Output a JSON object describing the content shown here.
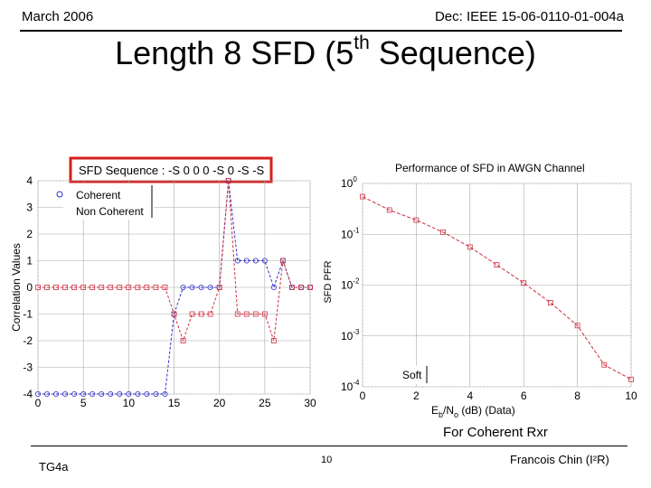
{
  "header": {
    "left": "March 2006",
    "right": "Dec: IEEE 15-06-0110-01-004a"
  },
  "slide": {
    "title_main": "Length 8 SFD (5",
    "title_sup": "th",
    "title_end": " Sequence)",
    "caption": "For Coherent Rxr"
  },
  "footer": {
    "left": "TG4a",
    "page": "10",
    "right": "Francois Chin (I²R)"
  },
  "colors": {
    "coherent": "#3030c8",
    "noncoherent": "#d03040",
    "highlight_box": "#d61f1f"
  },
  "chart_data": [
    {
      "type": "line",
      "title": "SFD Sequence : -S 0 0 0 -S 0 -S -S",
      "ylabel": "Correlation Values",
      "xlabel": "",
      "xlim": [
        0,
        30
      ],
      "ylim": [
        -4,
        4
      ],
      "xticks": [
        0,
        5,
        10,
        15,
        20,
        25,
        30
      ],
      "yticks": [
        -4,
        -3,
        -2,
        -1,
        0,
        1,
        2,
        3,
        4
      ],
      "grid": true,
      "legend_position": "top-left",
      "series": [
        {
          "name": "Coherent",
          "marker": "circle",
          "x": [
            0,
            1,
            2,
            3,
            4,
            5,
            6,
            7,
            8,
            9,
            10,
            11,
            12,
            13,
            14,
            15,
            16,
            17,
            18,
            19,
            20,
            21,
            22,
            23,
            24,
            25,
            26,
            27,
            28,
            29,
            30
          ],
          "y": [
            -4,
            -4,
            -4,
            -4,
            -4,
            -4,
            -4,
            -4,
            -4,
            -4,
            -4,
            -4,
            -4,
            -4,
            -4,
            -1,
            0,
            0,
            0,
            0,
            0,
            4,
            1,
            1,
            1,
            1,
            0,
            1,
            0,
            0,
            0
          ]
        },
        {
          "name": "Non Coherent",
          "marker": "square",
          "x": [
            0,
            1,
            2,
            3,
            4,
            5,
            6,
            7,
            8,
            9,
            10,
            11,
            12,
            13,
            14,
            15,
            16,
            17,
            18,
            19,
            20,
            21,
            22,
            23,
            24,
            25,
            26,
            27,
            28,
            29,
            30
          ],
          "y": [
            0,
            0,
            0,
            0,
            0,
            0,
            0,
            0,
            0,
            0,
            0,
            0,
            0,
            0,
            0,
            -1,
            -2,
            -1,
            -1,
            -1,
            0,
            4,
            -1,
            -1,
            -1,
            -1,
            -2,
            1,
            0,
            0,
            0
          ]
        }
      ]
    },
    {
      "type": "line",
      "title": "Performance of SFD in AWGN Channel",
      "ylabel": "SFD PFR",
      "xlabel_main": "E",
      "xlabel_sub1": "b",
      "xlabel_mid": "/N",
      "xlabel_sub2": "o",
      "xlabel_end": " (dB) (Data)",
      "xlim": [
        0,
        10
      ],
      "ylim": [
        0.0001,
        1
      ],
      "yscale": "log",
      "xticks": [
        0,
        2,
        4,
        6,
        8,
        10
      ],
      "yticks": [
        {
          "base": "10",
          "exp": "0"
        },
        {
          "base": "10",
          "exp": "-1"
        },
        {
          "base": "10",
          "exp": "-2"
        },
        {
          "base": "10",
          "exp": "-3"
        },
        {
          "base": "10",
          "exp": "-4"
        }
      ],
      "grid": true,
      "legend_position": "bottom-left",
      "series": [
        {
          "name": "Soft",
          "marker": "square",
          "x": [
            0,
            1,
            2,
            3,
            4,
            5,
            6,
            7,
            8,
            9,
            10
          ],
          "y": [
            0.55,
            0.3,
            0.19,
            0.11,
            0.056,
            0.025,
            0.011,
            0.0045,
            0.0016,
            0.00027,
            0.00014
          ]
        }
      ]
    }
  ]
}
